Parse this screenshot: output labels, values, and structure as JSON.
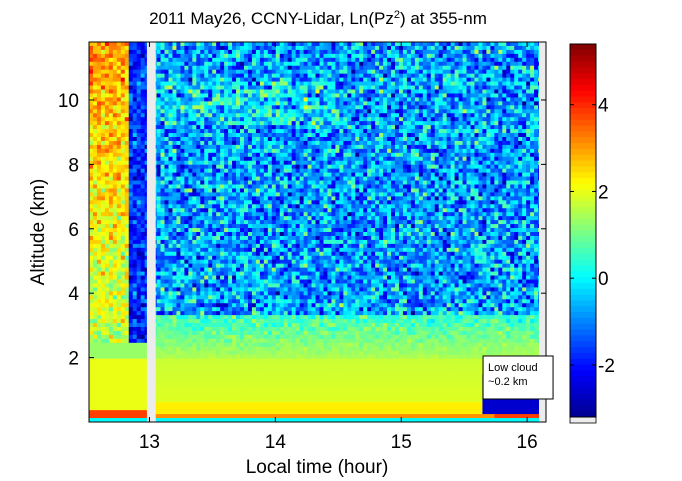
{
  "chart_data": {
    "type": "heatmap",
    "title_main": "2011 May26, CCNY-Lidar, Ln(Pz",
    "title_sup": "2",
    "title_tail": ") at 355-nm",
    "xlabel": "Local time (hour)",
    "ylabel": "Altitude (km)",
    "xlim": [
      12.52,
      16.15
    ],
    "ylim": [
      0,
      11.8
    ],
    "x_ticks": [
      13,
      14,
      15,
      16
    ],
    "y_ticks": [
      2,
      4,
      6,
      8,
      10
    ],
    "data_gap": [
      12.98,
      13.05
    ],
    "colorbar": {
      "range": [
        -3.2,
        5.4
      ],
      "ticks": [
        -2,
        0,
        2,
        4
      ],
      "colormap": [
        "#00008f",
        "#0000ff",
        "#007fff",
        "#00ffff",
        "#7fff7f",
        "#ffff00",
        "#ff7f00",
        "#ff0000",
        "#7f0000"
      ]
    },
    "annotations": [
      {
        "lines": [
          "Low cloud",
          "~0.2 km"
        ],
        "x": 15.65,
        "y": 2.05
      }
    ]
  }
}
